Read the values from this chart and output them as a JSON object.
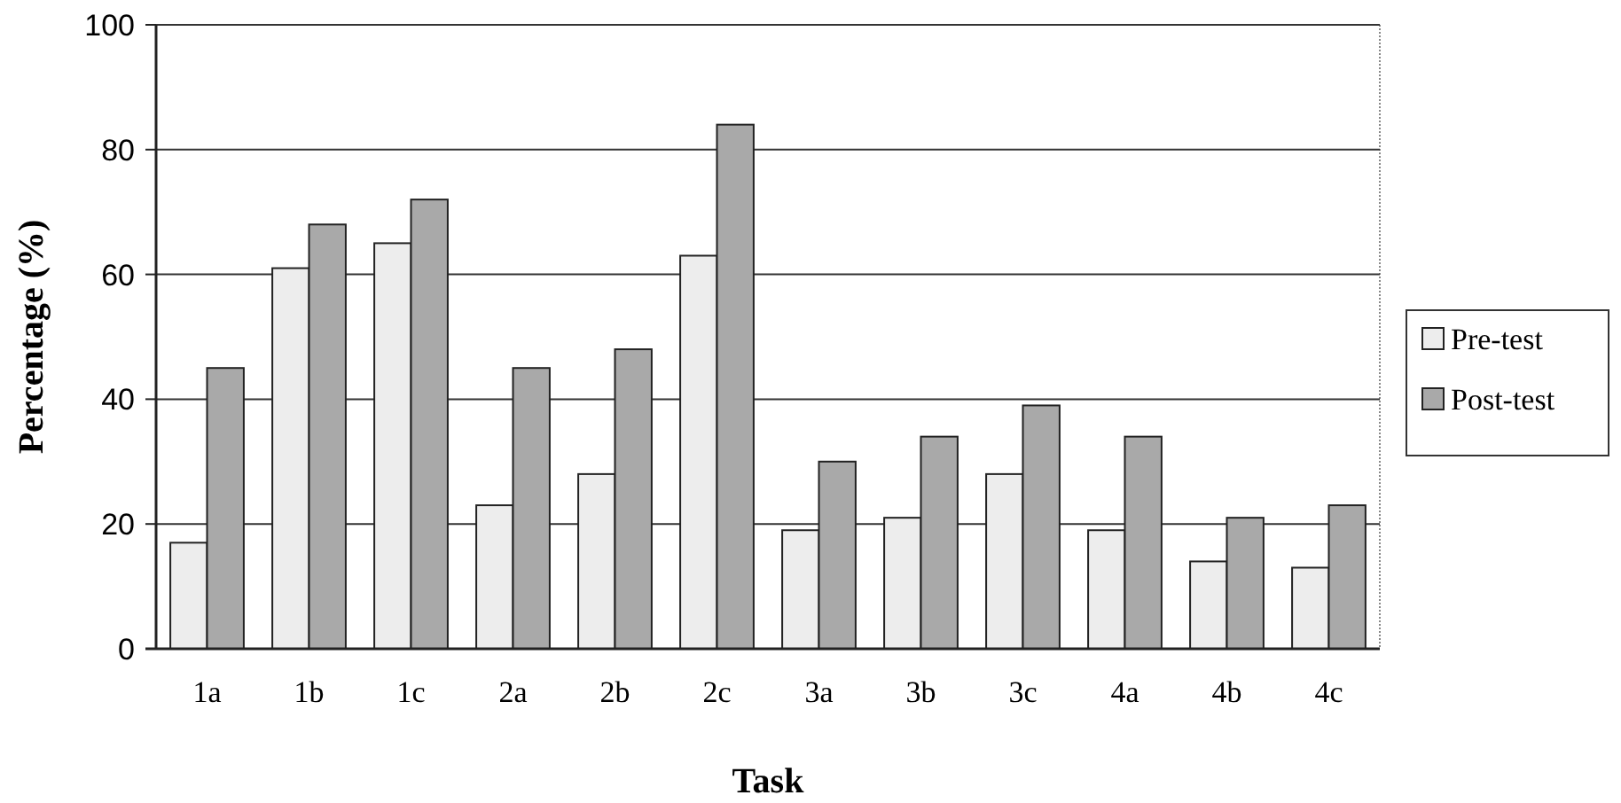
{
  "chart_data": {
    "type": "bar",
    "xlabel": "Task",
    "ylabel": "Percentage (%)",
    "categories": [
      "1a",
      "1b",
      "1c",
      "2a",
      "2b",
      "2c",
      "3a",
      "3b",
      "3c",
      "4a",
      "4b",
      "4c"
    ],
    "series": [
      {
        "name": "Pre-test",
        "color": "#ededed",
        "values": [
          17,
          61,
          65,
          23,
          28,
          63,
          19,
          21,
          28,
          19,
          14,
          13
        ]
      },
      {
        "name": "Post-test",
        "color": "#a9a9a9",
        "values": [
          45,
          68,
          72,
          45,
          48,
          84,
          30,
          34,
          39,
          34,
          21,
          23
        ]
      }
    ],
    "ylim": [
      0,
      100
    ],
    "yticks": [
      0,
      20,
      40,
      60,
      80,
      100
    ],
    "grid": "y",
    "legend": "right"
  }
}
